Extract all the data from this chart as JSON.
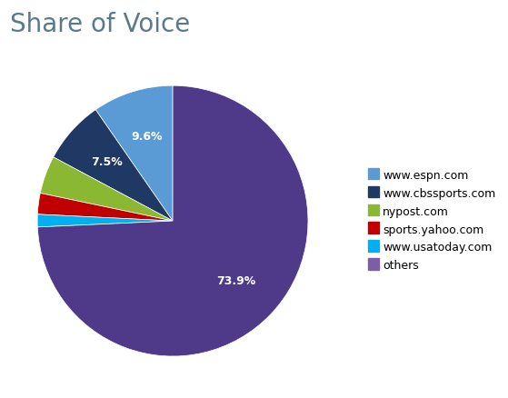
{
  "title": "Share of Voice",
  "title_color": "#5a7a8a",
  "title_fontsize": 20,
  "labels": [
    "www.espn.com",
    "www.cbssports.com",
    "nypost.com",
    "sports.yahoo.com",
    "www.usatoday.com",
    "others"
  ],
  "values": [
    9.6,
    7.5,
    4.5,
    2.5,
    1.5,
    73.9
  ],
  "colors": [
    "#5b9bd5",
    "#1f3864",
    "#8ab833",
    "#c00000",
    "#00b0f0",
    "#4f3a8a"
  ],
  "autopct_labels": [
    "9.6%",
    "7.5%",
    "",
    "",
    "",
    "73.9%"
  ],
  "startangle": 90,
  "legend_fontsize": 9,
  "legend_marker_colors": [
    "#5b9bd5",
    "#1f3864",
    "#8ab833",
    "#c00000",
    "#00b0f0",
    "#7b5ea7"
  ],
  "background_color": "#ffffff"
}
